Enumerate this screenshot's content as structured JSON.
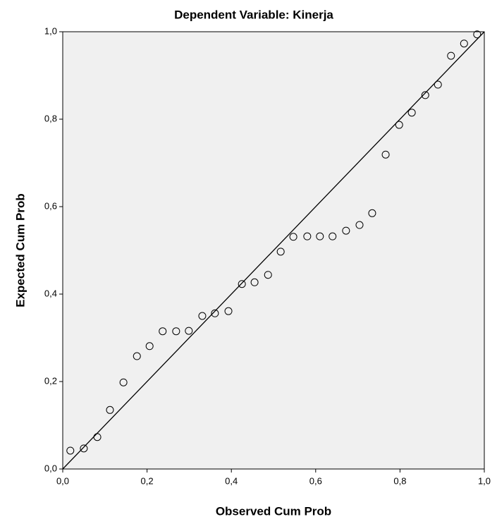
{
  "chart_data": {
    "type": "scatter",
    "title": "Dependent Variable: Kinerja",
    "x_label": "Observed Cum Prob",
    "y_label": "Expected Cum Prob",
    "x": [
      0.018,
      0.05,
      0.082,
      0.112,
      0.144,
      0.176,
      0.206,
      0.237,
      0.269,
      0.299,
      0.331,
      0.361,
      0.393,
      0.425,
      0.455,
      0.487,
      0.517,
      0.547,
      0.58,
      0.61,
      0.64,
      0.672,
      0.704,
      0.734,
      0.766,
      0.798,
      0.828,
      0.86,
      0.89,
      0.921,
      0.952,
      0.983
    ],
    "values": [
      0.042,
      0.047,
      0.073,
      0.135,
      0.198,
      0.258,
      0.281,
      0.315,
      0.315,
      0.316,
      0.35,
      0.356,
      0.361,
      0.423,
      0.427,
      0.444,
      0.497,
      0.531,
      0.532,
      0.532,
      0.532,
      0.545,
      0.558,
      0.585,
      0.719,
      0.787,
      0.815,
      0.855,
      0.879,
      0.945,
      0.973,
      0.994
    ],
    "color": "#000000",
    "plot_background": "#f0f0f0",
    "reference_line": true,
    "xlim": [
      0,
      1
    ],
    "ylim": [
      0,
      1
    ],
    "xticks": [
      {
        "value": 0,
        "label": "0,0"
      },
      {
        "value": 0.2,
        "label": "0,2"
      },
      {
        "value": 0.4,
        "label": "0,4"
      },
      {
        "value": 0.6,
        "label": "0,6"
      },
      {
        "value": 0.8,
        "label": "0,8"
      },
      {
        "value": 1,
        "label": "1,0"
      }
    ],
    "yticks": [
      {
        "value": 0,
        "label": "0,0"
      },
      {
        "value": 0.2,
        "label": "0,2"
      },
      {
        "value": 0.4,
        "label": "0,4"
      },
      {
        "value": 0.6,
        "label": "0,6"
      },
      {
        "value": 0.8,
        "label": "0,8"
      },
      {
        "value": 1,
        "label": "1,0"
      }
    ]
  }
}
